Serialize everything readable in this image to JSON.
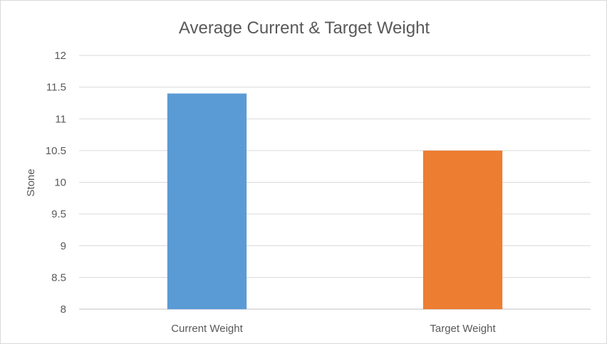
{
  "chart_data": {
    "type": "bar",
    "title": "Average Current & Target Weight",
    "xlabel": "",
    "ylabel": "Stone",
    "categories": [
      "Current Weight",
      "Target Weight"
    ],
    "values": [
      11.4,
      10.5
    ],
    "colors": [
      "#5b9bd5",
      "#ed7d31"
    ],
    "ylim": [
      8,
      12
    ],
    "yticks": [
      "8",
      "8.5",
      "9",
      "9.5",
      "10",
      "10.5",
      "11",
      "11.5",
      "12"
    ],
    "grid": true,
    "legend": "none"
  }
}
